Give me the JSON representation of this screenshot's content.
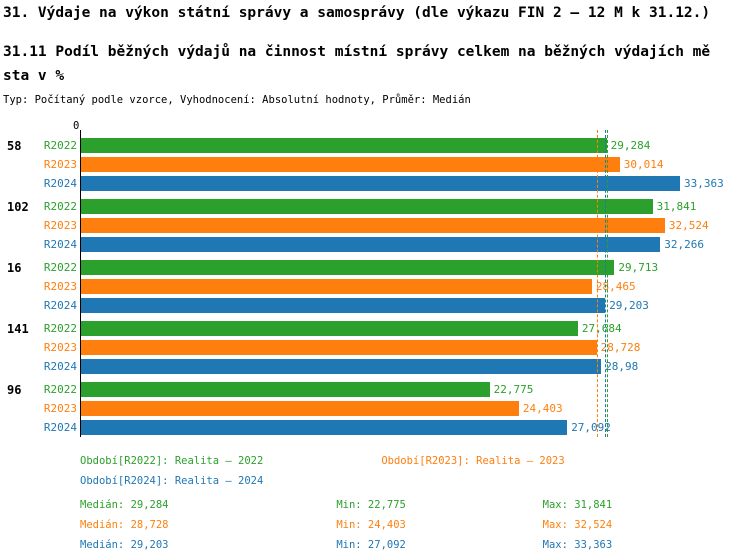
{
  "colors": {
    "R2022": "#2CA02C",
    "R2023": "#FF7F0E",
    "R2024": "#1F77B4",
    "text": "#000000",
    "background": "#FFFFFF"
  },
  "header": {
    "title": "31. Výdaje na výkon státní správy a samosprávy (dle výkazu FIN 2 – 12 M k 31.12.)",
    "subtitle_line1": "31.11 Podíl běžných výdajů na činnost místní správy celkem na běžných výdajích mě",
    "subtitle_line2": "sta v %",
    "meta": "Typ: Počítaný podle vzorce, Vyhodnocení: Absolutní hodnoty, Průměr: Medián"
  },
  "chart_data": {
    "type": "bar",
    "orientation": "horizontal",
    "xlim": [
      0,
      33.363
    ],
    "axis_zero_label": "0",
    "grid": false,
    "series": [
      "R2022",
      "R2023",
      "R2024"
    ],
    "groups": [
      {
        "id": "58",
        "bars": [
          {
            "series": "R2022",
            "value": 29.284,
            "label": "29,284"
          },
          {
            "series": "R2023",
            "value": 30.014,
            "label": "30,014"
          },
          {
            "series": "R2024",
            "value": 33.363,
            "label": "33,363"
          }
        ]
      },
      {
        "id": "102",
        "bars": [
          {
            "series": "R2022",
            "value": 31.841,
            "label": "31,841"
          },
          {
            "series": "R2023",
            "value": 32.524,
            "label": "32,524"
          },
          {
            "series": "R2024",
            "value": 32.266,
            "label": "32,266"
          }
        ]
      },
      {
        "id": "16",
        "bars": [
          {
            "series": "R2022",
            "value": 29.713,
            "label": "29,713"
          },
          {
            "series": "R2023",
            "value": 28.465,
            "label": "28,465"
          },
          {
            "series": "R2024",
            "value": 29.203,
            "label": "29,203"
          }
        ]
      },
      {
        "id": "141",
        "bars": [
          {
            "series": "R2022",
            "value": 27.684,
            "label": "27,684"
          },
          {
            "series": "R2023",
            "value": 28.728,
            "label": "28,728"
          },
          {
            "series": "R2024",
            "value": 28.98,
            "label": "28,98"
          }
        ]
      },
      {
        "id": "96",
        "bars": [
          {
            "series": "R2022",
            "value": 22.775,
            "label": "22,775"
          },
          {
            "series": "R2023",
            "value": 24.403,
            "label": "24,403"
          },
          {
            "series": "R2024",
            "value": 27.092,
            "label": "27,092"
          }
        ]
      }
    ],
    "median_lines": [
      {
        "series": "R2022",
        "value": 29.284
      },
      {
        "series": "R2023",
        "value": 28.728
      },
      {
        "series": "R2024",
        "value": 29.203
      }
    ]
  },
  "legend": {
    "items": [
      {
        "series": "R2022",
        "label": "Období[R2022]: Realita – 2022"
      },
      {
        "series": "R2023",
        "label": "Období[R2023]: Realita – 2023"
      },
      {
        "series": "R2024",
        "label": "Období[R2024]: Realita – 2024"
      }
    ]
  },
  "stats": [
    {
      "series": "R2022",
      "median": "Medián: 29,284",
      "min": "Min: 22,775",
      "max": "Max: 31,841"
    },
    {
      "series": "R2023",
      "median": "Medián: 28,728",
      "min": "Min: 24,403",
      "max": "Max: 32,524"
    },
    {
      "series": "R2024",
      "median": "Medián: 29,203",
      "min": "Min: 27,092",
      "max": "Max: 33,363"
    }
  ]
}
